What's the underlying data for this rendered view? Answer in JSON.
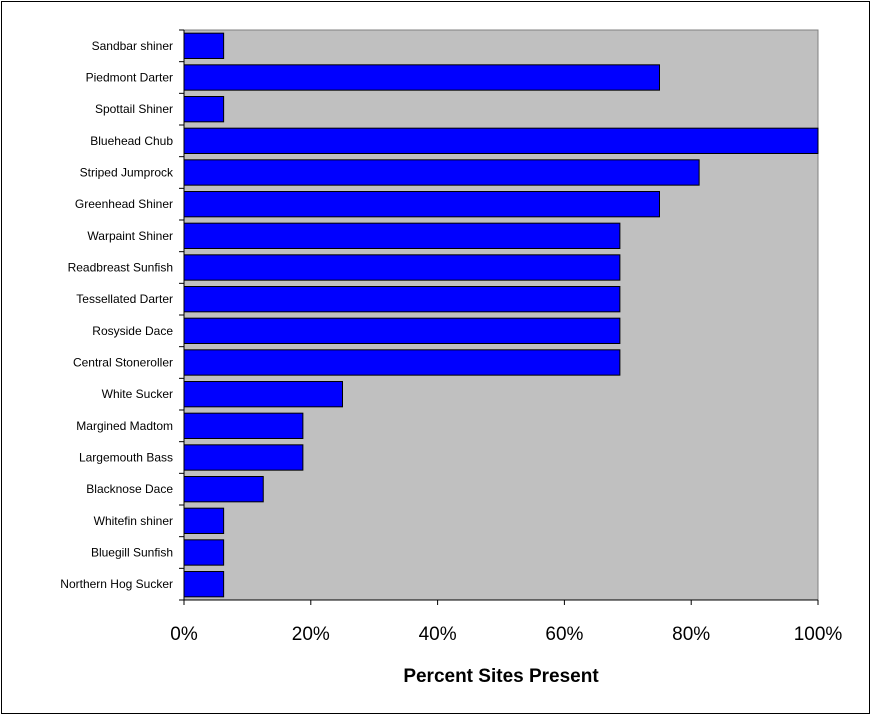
{
  "chart_data": {
    "type": "bar",
    "orientation": "horizontal",
    "categories": [
      "Sandbar shiner",
      "Piedmont Darter",
      "Spottail Shiner",
      "Bluehead Chub",
      "Striped Jumprock",
      "Greenhead Shiner",
      "Warpaint Shiner",
      "Readbreast Sunfish",
      "Tessellated Darter",
      "Rosyside Dace",
      "Central Stoneroller",
      "White Sucker",
      "Margined Madtom",
      "Largemouth Bass",
      "Blacknose Dace",
      "Whitefin shiner",
      "Bluegill Sunfish",
      "Northern Hog Sucker"
    ],
    "values": [
      6.25,
      75,
      6.25,
      100,
      81.25,
      75,
      68.75,
      68.75,
      68.75,
      68.75,
      68.75,
      25,
      18.75,
      18.75,
      12.5,
      6.25,
      6.25,
      6.25
    ],
    "title": "",
    "xlabel": "Percent Sites Present",
    "ylabel": "",
    "xlim": [
      0,
      100
    ],
    "x_ticks": [
      "0%",
      "20%",
      "40%",
      "60%",
      "80%",
      "100%"
    ],
    "grid": false,
    "legend": "none",
    "colors": {
      "bar_fill": "#0000FF",
      "bar_stroke": "#000000",
      "plot_background": "#C0C0C0"
    }
  }
}
